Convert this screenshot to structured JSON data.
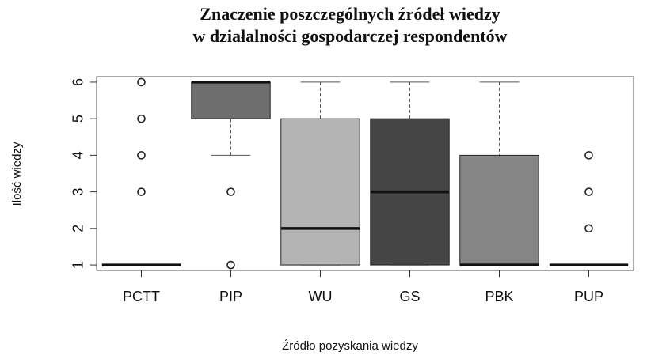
{
  "chart_data": {
    "type": "box",
    "title": [
      "Znaczenie poszczególnych źródeł wiedzy",
      "w działalności gospodarczej respondentów"
    ],
    "x_label": "Źródło pozyskania wiedzy",
    "y_label": "Ilość wiedzy",
    "ylim": [
      0.85,
      6.15
    ],
    "yticks": [
      1,
      2,
      3,
      4,
      5,
      6
    ],
    "boxes": [
      {
        "name": "PCTT",
        "color": "#f2f2f2",
        "whislo": 1,
        "q1": 1,
        "med": 1,
        "q3": 1,
        "whishi": 1,
        "fliers": [
          3,
          4,
          5,
          6
        ]
      },
      {
        "name": "PIP",
        "color": "#6e6e6e",
        "whislo": 4,
        "q1": 5,
        "med": 6,
        "q3": 6,
        "whishi": 6,
        "fliers": [
          1,
          3
        ]
      },
      {
        "name": "WU",
        "color": "#b4b4b4",
        "whislo": 1,
        "q1": 1,
        "med": 2,
        "q3": 5,
        "whishi": 6,
        "fliers": []
      },
      {
        "name": "GS",
        "color": "#454545",
        "whislo": 1,
        "q1": 1,
        "med": 3,
        "q3": 5,
        "whishi": 6,
        "fliers": []
      },
      {
        "name": "PBK",
        "color": "#858585",
        "whislo": 1,
        "q1": 1,
        "med": 1,
        "q3": 4,
        "whishi": 6,
        "fliers": []
      },
      {
        "name": "PUP",
        "color": "#e0e0e0",
        "whislo": 1,
        "q1": 1,
        "med": 1,
        "q3": 1,
        "whishi": 1,
        "fliers": [
          2,
          3,
          4
        ]
      }
    ]
  }
}
